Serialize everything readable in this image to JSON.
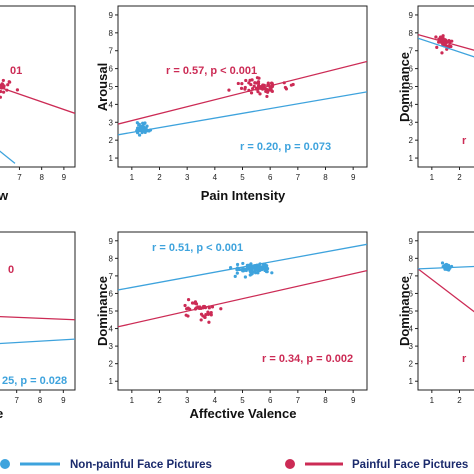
{
  "colors": {
    "nonpainful": "#3ea3dd",
    "painful": "#cc2b55",
    "axis": "#222222",
    "label": "#111111",
    "legend_text": "#1a2a6c"
  },
  "legend": {
    "nonpainful": "Non-painful Face Pictures",
    "painful": "Painful Face Pictures"
  },
  "chart_data": [
    {
      "id": "top-left",
      "type": "scatter",
      "xlabel": "w",
      "ylabel": "",
      "xlim": [
        0.5,
        9.5
      ],
      "ylim": [
        0.5,
        9.5
      ],
      "x_ticks": [
        "7",
        "8",
        "9"
      ],
      "y_ticks": [],
      "annotations": [
        {
          "series": "painful",
          "text": "01"
        }
      ],
      "series": [
        {
          "name": "painful",
          "line": [
            [
              6.0,
              5.0
            ],
            [
              9.5,
              3.5
            ]
          ],
          "clusters": [
            {
              "cx": 6.2,
              "cy": 5.0,
              "sx": 0.25,
              "sy": 0.3,
              "n": 20
            }
          ]
        },
        {
          "name": "nonpainful",
          "line": [
            [
              5.8,
              1.7
            ],
            [
              6.8,
              0.7
            ]
          ],
          "clusters": []
        }
      ]
    },
    {
      "id": "top-center",
      "type": "scatter",
      "xlabel": "Pain Intensity",
      "ylabel": "Arousal",
      "xlim": [
        0.5,
        9.5
      ],
      "ylim": [
        0.5,
        9.5
      ],
      "x_ticks": [
        "1",
        "2",
        "3",
        "4",
        "5",
        "6",
        "7",
        "8",
        "9"
      ],
      "y_ticks": [
        "1",
        "2",
        "3",
        "4",
        "5",
        "6",
        "7",
        "8",
        "9"
      ],
      "annotations": [
        {
          "series": "painful",
          "text": "r = 0.57, p < 0.001"
        },
        {
          "series": "nonpainful",
          "text": "r = 0.20, p = 0.073"
        }
      ],
      "series": [
        {
          "name": "painful",
          "line": [
            [
              0.5,
              2.9
            ],
            [
              9.5,
              6.4
            ]
          ],
          "clusters": [
            {
              "cx": 5.7,
              "cy": 5.0,
              "sx": 0.45,
              "sy": 0.22,
              "n": 65
            }
          ]
        },
        {
          "name": "nonpainful",
          "line": [
            [
              0.5,
              2.3
            ],
            [
              9.5,
              4.7
            ]
          ],
          "clusters": [
            {
              "cx": 1.4,
              "cy": 2.7,
              "sx": 0.1,
              "sy": 0.15,
              "n": 45
            }
          ]
        }
      ]
    },
    {
      "id": "top-right",
      "type": "scatter",
      "xlabel": "",
      "ylabel": "Dominance",
      "xlim": [
        0.5,
        9.5
      ],
      "ylim": [
        0.5,
        9.5
      ],
      "x_ticks": [
        "1",
        "2",
        "3"
      ],
      "y_ticks": [
        "1",
        "2",
        "3",
        "4",
        "5",
        "6",
        "7",
        "8",
        "9"
      ],
      "annotations": [
        {
          "series": "painful",
          "text": "r"
        }
      ],
      "series": [
        {
          "name": "painful",
          "line": [
            [
              0.5,
              7.9
            ],
            [
              4.0,
              6.4
            ]
          ],
          "clusters": [
            {
              "cx": 1.45,
              "cy": 7.5,
              "sx": 0.14,
              "sy": 0.2,
              "n": 45
            }
          ]
        },
        {
          "name": "nonpainful",
          "line": [
            [
              0.5,
              7.7
            ],
            [
              4.0,
              5.9
            ]
          ],
          "clusters": []
        }
      ]
    },
    {
      "id": "bottom-left",
      "type": "scatter",
      "xlabel": "ce",
      "ylabel": "",
      "xlim": [
        0.5,
        9.5
      ],
      "ylim": [
        0.5,
        9.5
      ],
      "x_ticks": [
        "3",
        "4",
        "5",
        "6",
        "7",
        "8",
        "9"
      ],
      "y_ticks": [],
      "annotations": [
        {
          "series": "painful",
          "text": "0"
        },
        {
          "series": "nonpainful",
          "text": "25, p = 0.028"
        }
      ],
      "series": [
        {
          "name": "painful",
          "line": [
            [
              0.5,
              5.0
            ],
            [
              9.5,
              4.5
            ]
          ],
          "clusters": []
        },
        {
          "name": "nonpainful",
          "line": [
            [
              0.5,
              2.7
            ],
            [
              9.5,
              3.4
            ]
          ],
          "clusters": []
        }
      ]
    },
    {
      "id": "bottom-center",
      "type": "scatter",
      "xlabel": "Affective Valence",
      "ylabel": "Dominance",
      "xlim": [
        0.5,
        9.5
      ],
      "ylim": [
        0.5,
        9.5
      ],
      "x_ticks": [
        "1",
        "2",
        "3",
        "4",
        "5",
        "6",
        "7",
        "8",
        "9"
      ],
      "y_ticks": [
        "1",
        "2",
        "3",
        "4",
        "5",
        "6",
        "7",
        "8",
        "9"
      ],
      "annotations": [
        {
          "series": "nonpainful",
          "text": "r = 0.51, p < 0.001"
        },
        {
          "series": "painful",
          "text": "r = 0.34, p = 0.002"
        }
      ],
      "series": [
        {
          "name": "nonpainful",
          "line": [
            [
              0.5,
              6.2
            ],
            [
              9.5,
              8.8
            ]
          ],
          "clusters": [
            {
              "cx": 5.4,
              "cy": 7.4,
              "sx": 0.35,
              "sy": 0.15,
              "n": 75
            }
          ]
        },
        {
          "name": "painful",
          "line": [
            [
              0.5,
              4.1
            ],
            [
              9.5,
              7.3
            ]
          ],
          "clusters": [
            {
              "cx": 3.4,
              "cy": 5.0,
              "sx": 0.3,
              "sy": 0.3,
              "n": 40
            }
          ]
        }
      ]
    },
    {
      "id": "bottom-right",
      "type": "scatter",
      "xlabel": "",
      "ylabel": "Dominance",
      "xlim": [
        0.5,
        9.5
      ],
      "ylim": [
        0.5,
        9.5
      ],
      "x_ticks": [
        "1",
        "2",
        "3"
      ],
      "y_ticks": [
        "1",
        "2",
        "3",
        "4",
        "5",
        "6",
        "7",
        "8",
        "9"
      ],
      "annotations": [
        {
          "series": "painful",
          "text": "r"
        }
      ],
      "series": [
        {
          "name": "painful",
          "line": [
            [
              0.5,
              7.4
            ],
            [
              3.5,
              3.8
            ]
          ],
          "clusters": []
        },
        {
          "name": "nonpainful",
          "line": [
            [
              0.5,
              7.4
            ],
            [
              3.5,
              7.6
            ]
          ],
          "clusters": [
            {
              "cx": 1.5,
              "cy": 7.5,
              "sx": 0.1,
              "sy": 0.1,
              "n": 25
            }
          ]
        }
      ]
    }
  ]
}
